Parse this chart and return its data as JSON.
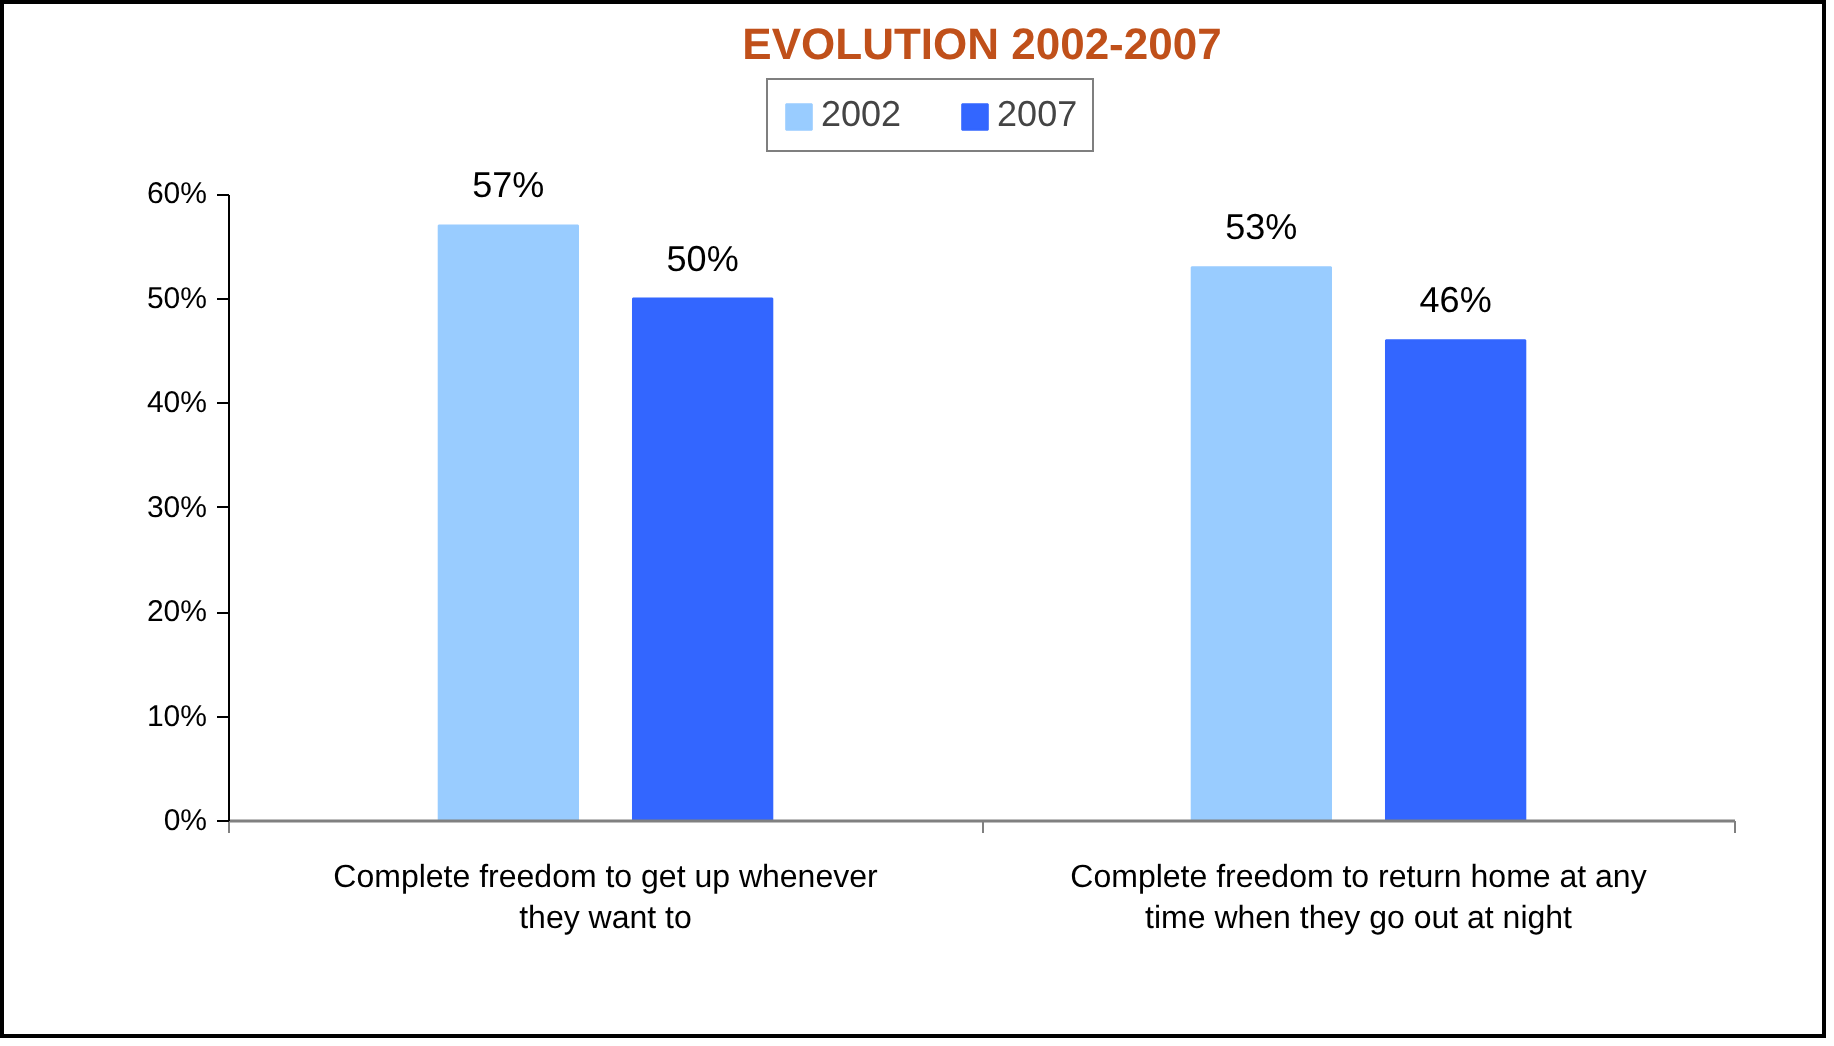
{
  "chart_data": {
    "type": "bar",
    "title": "EVOLUTION 2002-2007",
    "categories": [
      "Complete freedom to get up whenever they want to",
      "Complete freedom to return home at any time when they go out at night"
    ],
    "series": [
      {
        "name": "2002",
        "color": "#99ccff",
        "values": [
          57,
          53
        ],
        "value_labels": [
          "57%",
          "53%"
        ]
      },
      {
        "name": "2007",
        "color": "#3366ff",
        "values": [
          50,
          46
        ],
        "value_labels": [
          "50%",
          "46%"
        ]
      }
    ],
    "ylim": [
      0,
      60
    ],
    "yticks": [
      {
        "value": 0,
        "label": "0%"
      },
      {
        "value": 10,
        "label": "10%"
      },
      {
        "value": 20,
        "label": "20%"
      },
      {
        "value": 30,
        "label": "30%"
      },
      {
        "value": 40,
        "label": "40%"
      },
      {
        "value": 50,
        "label": "50%"
      },
      {
        "value": 60,
        "label": "60%"
      }
    ],
    "legend": "top"
  }
}
